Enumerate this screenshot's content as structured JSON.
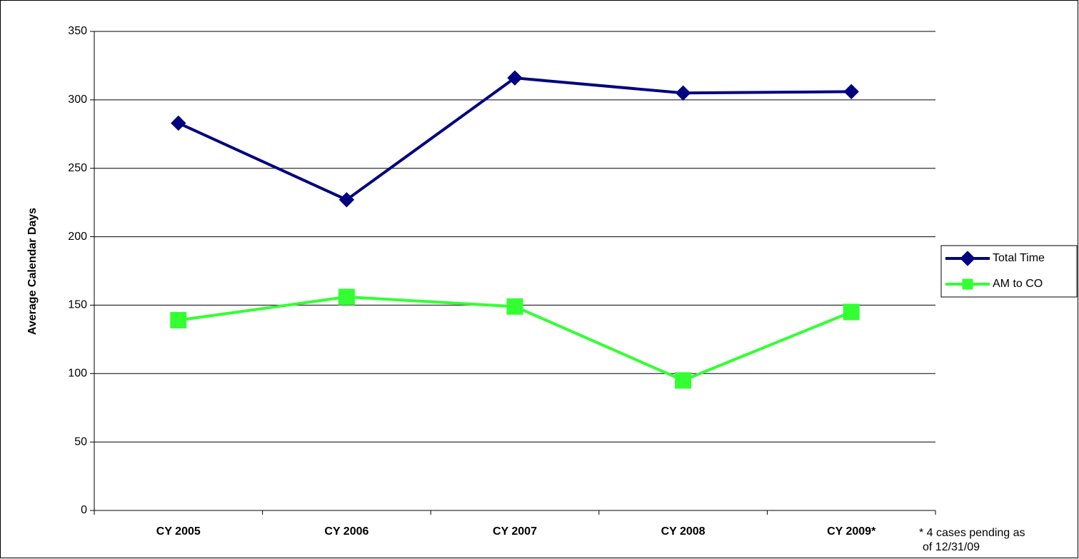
{
  "chart_data": {
    "type": "line",
    "y_label": "Average Calendar Days",
    "categories": [
      "CY 2005",
      "CY 2006",
      "CY 2007",
      "CY 2008",
      "CY 2009*"
    ],
    "series": [
      {
        "name": "Total Time",
        "color": "#000080",
        "marker": "diamond",
        "values": [
          283,
          227,
          316,
          305,
          306
        ]
      },
      {
        "name": "AM to CO",
        "color": "#33ff33",
        "marker": "square",
        "values": [
          139,
          156,
          149,
          95,
          145
        ]
      }
    ],
    "ylim": [
      0,
      350
    ],
    "yticks": [
      0,
      50,
      100,
      150,
      200,
      250,
      300,
      350
    ],
    "grid": true,
    "legend": "right",
    "annotation": [
      "* 4 cases pending as",
      "of 12/31/09"
    ]
  }
}
